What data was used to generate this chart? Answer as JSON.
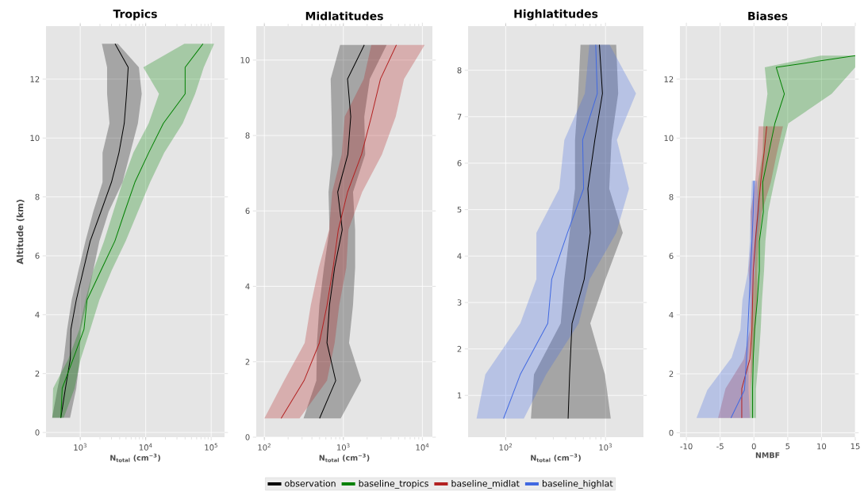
{
  "chart_data": [
    {
      "type": "line",
      "title": "Tropics",
      "xlabel": "N$_{total}$ (cm$^{−3}$)",
      "ylabel": "Altitude (km)",
      "orientation": "horizontal",
      "log": "x",
      "grid": true,
      "legend": "bottom",
      "xlim": [
        300,
        160000
      ],
      "ylim": [
        -0.16,
        13.8
      ],
      "xticks": [
        {
          "value": 1000,
          "label": "10$^{3}$"
        },
        {
          "value": 10000,
          "label": "10$^{4}$"
        },
        {
          "value": 100000,
          "label": "10$^{5}$"
        }
      ],
      "yticks": [
        0,
        2,
        4,
        6,
        8,
        10,
        12
      ],
      "series": [
        {
          "name": "observation",
          "color": "#000000",
          "x": [
            0.5,
            1.5,
            2.5,
            3.5,
            4.5,
            5.5,
            6.5,
            7.5,
            8.5,
            9.5,
            10.5,
            11.5,
            12.4,
            13.2
          ],
          "values": [
            505,
            594,
            705,
            720,
            870,
            1110,
            1420,
            2070,
            3000,
            3900,
            4700,
            5100,
            5400,
            3400
          ],
          "lower": [
            372,
            450,
            560,
            630,
            740,
            940,
            1200,
            1580,
            2190,
            2190,
            2800,
            2570,
            2570,
            2140
          ],
          "upper": [
            700,
            870,
            980,
            1020,
            1270,
            1580,
            1960,
            2720,
            4430,
            5810,
            7600,
            8690,
            7870,
            3760
          ]
        },
        {
          "name": "baseline_tropics",
          "color": "#008000",
          "x": [
            0.5,
            1.5,
            2.5,
            3.5,
            4.5,
            5.5,
            6.5,
            7.5,
            8.5,
            9.5,
            10.5,
            11.5,
            12.4,
            13.2
          ],
          "values": [
            505,
            530,
            780,
            1140,
            1270,
            2070,
            3380,
            4780,
            6840,
            11100,
            18600,
            40000,
            40000,
            75000
          ],
          "lower": [
            375,
            385,
            660,
            970,
            1200,
            1580,
            2310,
            3200,
            4430,
            6470,
            11100,
            15960,
            9170,
            38900
          ],
          "upper": [
            560,
            820,
            1020,
            1420,
            1960,
            3020,
            4940,
            7600,
            11700,
            19200,
            36800,
            56900,
            77100,
            111000
          ]
        }
      ]
    },
    {
      "type": "line",
      "title": "Midlatitudes",
      "xlabel": "N$_{total}$ (cm$^{−3}$)",
      "orientation": "horizontal",
      "log": "x",
      "grid": true,
      "xlim": [
        79,
        13400
      ],
      "ylim": [
        0,
        10.9
      ],
      "xticks": [
        {
          "value": 100,
          "label": "10$^{2}$"
        },
        {
          "value": 1000,
          "label": "10$^{3}$"
        },
        {
          "value": 10000,
          "label": "10$^{4}$"
        }
      ],
      "yticks": [
        0,
        2,
        4,
        6,
        8,
        10
      ],
      "series": [
        {
          "name": "observation",
          "color": "#000000",
          "x": [
            0.5,
            1.5,
            2.5,
            3.5,
            4.5,
            5.5,
            6.5,
            7.5,
            8.5,
            9.5,
            10.4
          ],
          "values": [
            500,
            800,
            620,
            667,
            776,
            968,
            848,
            1140,
            1240,
            1130,
            1840
          ],
          "lower": [
            313,
            455,
            463,
            497,
            568,
            667,
            649,
            722,
            710,
            691,
            910
          ],
          "upper": [
            927,
            1680,
            1180,
            1325,
            1410,
            1410,
            1325,
            1890,
            1840,
            2160,
            3530
          ]
        },
        {
          "name": "baseline_midlat",
          "color": "#b22222",
          "x": [
            0.5,
            1.5,
            2.5,
            3.5,
            4.5,
            5.5,
            6.5,
            7.5,
            8.5,
            9.5,
            10.4
          ],
          "values": [
            163,
            318,
            497,
            621,
            742,
            863,
            1130,
            1700,
            2260,
            2950,
            4690
          ],
          "lower": [
            100,
            178,
            324,
            387,
            489,
            661,
            722,
            953,
            1040,
            1810,
            2260
          ],
          "upper": [
            279,
            621,
            776,
            887,
            1090,
            1160,
            1730,
            3080,
            4600,
            5860,
            10700
          ]
        }
      ]
    },
    {
      "type": "line",
      "title": "Highlatitudes",
      "xlabel": "N$_{total}$ (cm$^{−3}$)",
      "orientation": "horizontal",
      "log": "x",
      "grid": true,
      "xlim": [
        42,
        2400
      ],
      "ylim": [
        0.1,
        8.95
      ],
      "xticks": [
        {
          "value": 100,
          "label": "10$^{2}$"
        },
        {
          "value": 1000,
          "label": "10$^{3}$"
        }
      ],
      "yticks": [
        1,
        2,
        3,
        4,
        5,
        6,
        7,
        8
      ],
      "series": [
        {
          "name": "observation",
          "color": "#000000",
          "x": [
            0.5,
            1.45,
            2.55,
            3.5,
            4.5,
            5.45,
            6.5,
            7.5,
            8.55
          ],
          "values": [
            422,
            437,
            462,
            612,
            704,
            666,
            782,
            932,
            869
          ],
          "lower": [
            179,
            192,
            356,
            387,
            437,
            495,
            495,
            532,
            562
          ],
          "upper": [
            1130,
            986,
            704,
            1000,
            1490,
            1090,
            1150,
            1340,
            1280
          ]
        },
        {
          "name": "baseline_highlat",
          "color": "#4169e1",
          "x": [
            0.5,
            1.45,
            2.55,
            3.5,
            4.5,
            5.45,
            6.5,
            7.5,
            8.55
          ],
          "values": [
            95,
            140,
            264,
            289,
            416,
            603,
            590,
            827,
            798
          ],
          "lower": [
            51,
            62.5,
            140,
            203,
            203,
            344,
            387,
            621,
            689
          ],
          "upper": [
            152,
            254,
            539,
            694,
            1280,
            1720,
            1300,
            2020,
            1100
          ]
        }
      ]
    },
    {
      "type": "line",
      "title": "Biases",
      "xlabel": "NMBF",
      "orientation": "horizontal",
      "grid": true,
      "xlim": [
        -10.95,
        15
      ],
      "ylim": [
        -0.15,
        13.8
      ],
      "xticks": [
        -10,
        -5,
        0,
        5,
        10,
        15
      ],
      "yticks": [
        0,
        2,
        4,
        6,
        8,
        10,
        12
      ],
      "series": [
        {
          "color": "#008000",
          "x": [
            0.5,
            1.5,
            2.5,
            3.5,
            4.5,
            5.5,
            6.5,
            7.5,
            8.5,
            9.5,
            10.5,
            11.5,
            12.4,
            12.8
          ],
          "values": [
            -0.2,
            -0.2,
            -0.1,
            0.1,
            0.5,
            0.8,
            0.8,
            1.4,
            1.3,
            2.2,
            3.1,
            4.5,
            3.3,
            15
          ],
          "lower": [
            -0.6,
            -0.5,
            -0.4,
            -0.4,
            -0.2,
            0.1,
            0.2,
            0.5,
            0.6,
            1.3,
            1.4,
            2,
            1.6,
            9.9
          ],
          "upper": [
            0.3,
            0.3,
            0.7,
            1,
            1.2,
            1.5,
            1.7,
            2.1,
            3,
            4,
            5.1,
            11.5,
            15,
            15
          ]
        },
        {
          "color": "#b22222",
          "x": [
            0.5,
            1.5,
            2.5,
            3.5,
            4.5,
            5.5,
            6.5,
            7.5,
            8.5,
            9.5,
            10.4
          ],
          "values": [
            -1.8,
            -1.8,
            -0.6,
            -0.3,
            -0.2,
            -0.1,
            0.2,
            0.6,
            1.0,
            1.5,
            1.9
          ],
          "lower": [
            -5.3,
            -4.2,
            -1.5,
            -0.6,
            -0.5,
            -0.8,
            -0.4,
            -0.5,
            0.2,
            0.5,
            0.7
          ],
          "upper": [
            -0.6,
            -0.5,
            -0.1,
            0.2,
            0.5,
            0.5,
            0.7,
            1.2,
            2.5,
            3.4,
            4.3
          ]
        },
        {
          "color": "#4169e1",
          "x": [
            0.5,
            1.45,
            2.55,
            3.5,
            4.5,
            5.45,
            6.5,
            7.5,
            8.55
          ],
          "values": [
            -3.4,
            -1.4,
            -1.1,
            -0.9,
            -0.7,
            -0.5,
            -0.3,
            -0.1,
            0
          ],
          "lower": [
            -8.5,
            -6.9,
            -3.3,
            -2,
            -1.7,
            -0.9,
            -0.6,
            -0.5,
            -0.3
          ],
          "upper": [
            -0.6,
            -0.8,
            -0.8,
            -0.5,
            -0.2,
            0.1,
            0.4,
            0.9,
            0.4
          ]
        }
      ]
    }
  ]
}
